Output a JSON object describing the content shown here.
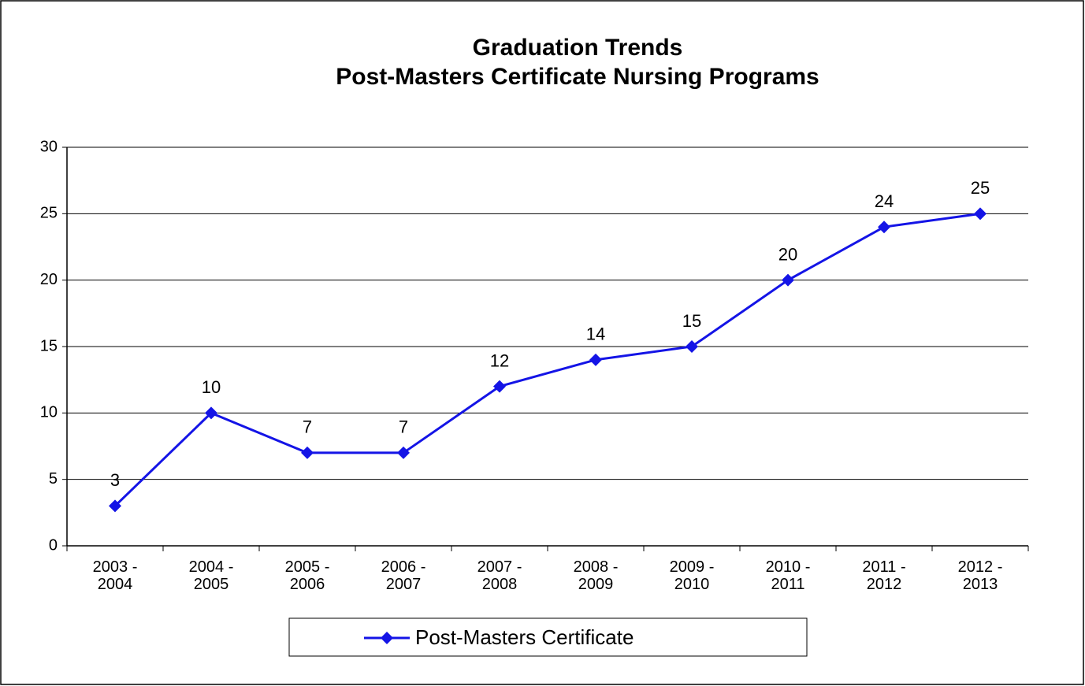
{
  "chart_data": {
    "type": "line",
    "title": "Graduation Trends",
    "subtitle": "Post-Masters Certificate Nursing Programs",
    "categories": [
      "2003 - 2004",
      "2004 - 2005",
      "2005 - 2006",
      "2006 - 2007",
      "2007 - 2008",
      "2008 - 2009",
      "2009 - 2010",
      "2010 - 2011",
      "2011 - 2012",
      "2012 - 2013"
    ],
    "series": [
      {
        "name": "Post-Masters Certificate",
        "color": "#1414e6",
        "values": [
          3,
          10,
          7,
          7,
          12,
          14,
          15,
          20,
          24,
          25
        ]
      }
    ],
    "ylim": [
      0,
      30
    ],
    "yticks": [
      0,
      5,
      10,
      15,
      20,
      25,
      30
    ],
    "grid": true,
    "legend": "bottom"
  }
}
